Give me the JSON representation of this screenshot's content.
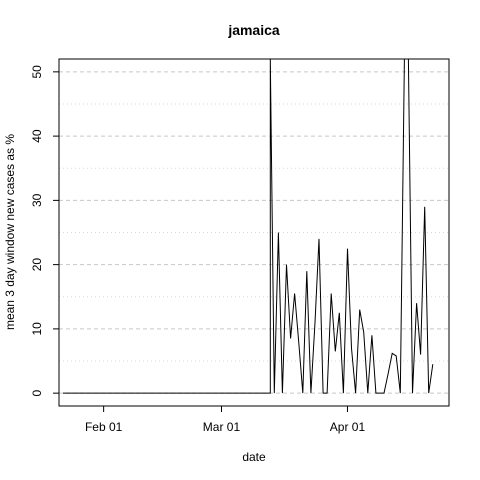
{
  "chart_data": {
    "type": "line",
    "title": "jamaica",
    "xlabel": "date",
    "ylabel": "mean  3  day window new cases as %",
    "x_start": "2020-01-22",
    "x_end": "2020-04-25",
    "xlim": [
      "2020-01-22",
      "2020-04-25"
    ],
    "ylim": [
      -2,
      52
    ],
    "grid": true,
    "x_ticks": [
      {
        "date": "2020-02-01",
        "label": "Feb 01"
      },
      {
        "date": "2020-03-01",
        "label": "Mar 01"
      },
      {
        "date": "2020-04-01",
        "label": "Apr 01"
      }
    ],
    "y_ticks": [
      0,
      10,
      20,
      30,
      40,
      50
    ],
    "series": [
      {
        "name": "",
        "color": "#000000",
        "x": [
          "2020-01-22",
          "2020-01-23",
          "2020-01-24",
          "2020-01-25",
          "2020-01-26",
          "2020-01-27",
          "2020-01-28",
          "2020-01-29",
          "2020-01-30",
          "2020-01-31",
          "2020-02-01",
          "2020-02-02",
          "2020-02-03",
          "2020-02-04",
          "2020-02-05",
          "2020-02-06",
          "2020-02-07",
          "2020-02-08",
          "2020-02-09",
          "2020-02-10",
          "2020-02-11",
          "2020-02-12",
          "2020-02-13",
          "2020-02-14",
          "2020-02-15",
          "2020-02-16",
          "2020-02-17",
          "2020-02-18",
          "2020-02-19",
          "2020-02-20",
          "2020-02-21",
          "2020-02-22",
          "2020-02-23",
          "2020-02-24",
          "2020-02-25",
          "2020-02-26",
          "2020-02-27",
          "2020-02-28",
          "2020-02-29",
          "2020-03-01",
          "2020-03-02",
          "2020-03-03",
          "2020-03-04",
          "2020-03-05",
          "2020-03-06",
          "2020-03-07",
          "2020-03-08",
          "2020-03-09",
          "2020-03-10",
          "2020-03-11",
          "2020-03-12",
          "2020-03-13",
          "2020-03-14",
          "2020-03-15",
          "2020-03-16",
          "2020-03-17",
          "2020-03-18",
          "2020-03-19",
          "2020-03-20",
          "2020-03-21",
          "2020-03-22",
          "2020-03-23",
          "2020-03-24",
          "2020-03-25",
          "2020-03-26",
          "2020-03-27",
          "2020-03-28",
          "2020-03-29",
          "2020-03-30",
          "2020-03-31",
          "2020-04-01",
          "2020-04-02",
          "2020-04-03",
          "2020-04-04",
          "2020-04-05",
          "2020-04-06",
          "2020-04-07",
          "2020-04-08",
          "2020-04-09",
          "2020-04-10",
          "2020-04-11",
          "2020-04-12",
          "2020-04-13",
          "2020-04-14",
          "2020-04-15",
          "2020-04-16",
          "2020-04-17",
          "2020-04-18",
          "2020-04-19",
          "2020-04-20",
          "2020-04-21",
          "2020-04-22",
          "2020-04-23",
          "2020-04-24",
          "2020-04-25"
        ],
        "y": [
          0,
          0,
          0,
          0,
          0,
          0,
          0,
          0,
          0,
          0,
          0,
          0,
          0,
          0,
          0,
          0,
          0,
          0,
          0,
          0,
          0,
          0,
          0,
          0,
          0,
          0,
          0,
          0,
          0,
          0,
          0,
          0,
          0,
          0,
          0,
          0,
          0,
          0,
          0,
          0,
          0,
          0,
          0,
          0,
          0,
          0,
          0,
          0,
          0,
          0,
          0,
          0,
          0,
          0,
          0,
          0,
          0,
          0,
          0,
          0,
          0,
          0,
          0,
          0,
          0,
          0,
          0,
          0,
          0,
          0,
          0,
          0,
          0,
          0,
          0,
          0,
          0,
          0,
          0,
          0,
          0,
          0,
          0,
          0,
          0,
          0,
          0,
          0,
          0,
          0,
          0,
          0,
          0,
          0,
          0
        ],
        "points": [
          [
            "2020-03-13",
            0
          ],
          [
            "2020-03-13",
            52
          ],
          [
            "2020-03-14",
            0
          ],
          [
            "2020-03-15",
            25
          ],
          [
            "2020-03-16",
            0
          ],
          [
            "2020-03-17",
            20
          ],
          [
            "2020-03-18",
            8.5
          ],
          [
            "2020-03-19",
            15.5
          ],
          [
            "2020-03-20",
            8
          ],
          [
            "2020-03-21",
            0
          ],
          [
            "2020-03-22",
            19
          ],
          [
            "2020-03-23",
            0
          ],
          [
            "2020-03-24",
            11
          ],
          [
            "2020-03-25",
            24
          ],
          [
            "2020-03-26",
            0
          ],
          [
            "2020-03-27",
            0
          ],
          [
            "2020-03-28",
            15.5
          ],
          [
            "2020-03-29",
            6.5
          ],
          [
            "2020-03-30",
            12.5
          ],
          [
            "2020-03-31",
            0
          ],
          [
            "2020-04-01",
            22.5
          ],
          [
            "2020-04-02",
            7
          ],
          [
            "2020-04-03",
            0
          ],
          [
            "2020-04-04",
            13
          ],
          [
            "2020-04-05",
            9.5
          ],
          [
            "2020-04-06",
            0
          ],
          [
            "2020-04-07",
            9
          ],
          [
            "2020-04-08",
            0
          ],
          [
            "2020-04-09",
            0
          ],
          [
            "2020-04-10",
            0
          ],
          [
            "2020-04-11",
            3
          ],
          [
            "2020-04-12",
            6.2
          ],
          [
            "2020-04-13",
            5.8
          ],
          [
            "2020-04-14",
            0
          ],
          [
            "2020-04-15",
            52
          ],
          [
            "2020-04-16",
            52
          ],
          [
            "2020-04-17",
            0
          ],
          [
            "2020-04-18",
            14
          ],
          [
            "2020-04-19",
            6
          ],
          [
            "2020-04-20",
            29
          ],
          [
            "2020-04-21",
            0
          ],
          [
            "2020-04-22",
            4.5
          ]
        ]
      }
    ]
  }
}
